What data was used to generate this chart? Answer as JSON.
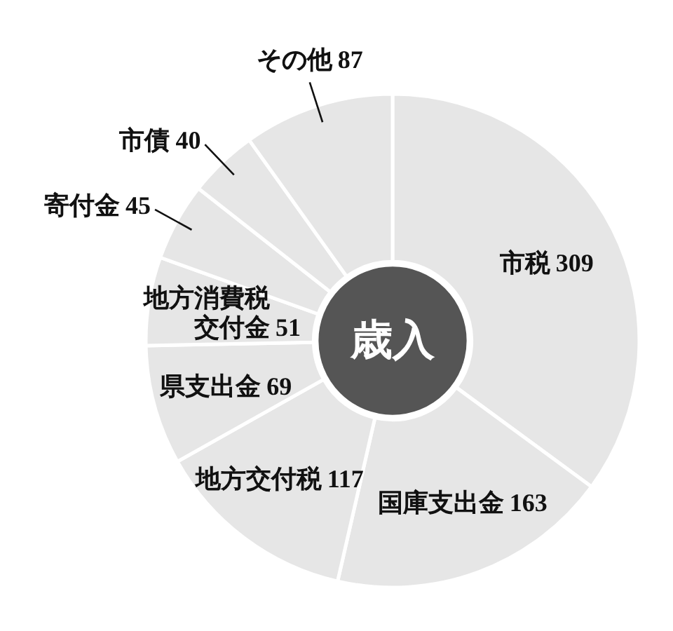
{
  "chart_data": {
    "type": "donut",
    "title": "歳入",
    "categories": [
      "市税",
      "国庫支出金",
      "地方交付税",
      "県支出金",
      "地方消費税交付金",
      "寄付金",
      "市債",
      "その他"
    ],
    "values": [
      309,
      163,
      117,
      69,
      51,
      45,
      40,
      87
    ],
    "colors": [
      "#e6e6e6",
      "#e6e6e6",
      "#e6e6e6",
      "#e6e6e6",
      "#e6e6e6",
      "#e6e6e6",
      "#e6e6e6",
      "#e6e6e6"
    ],
    "data_labels": true
  }
}
